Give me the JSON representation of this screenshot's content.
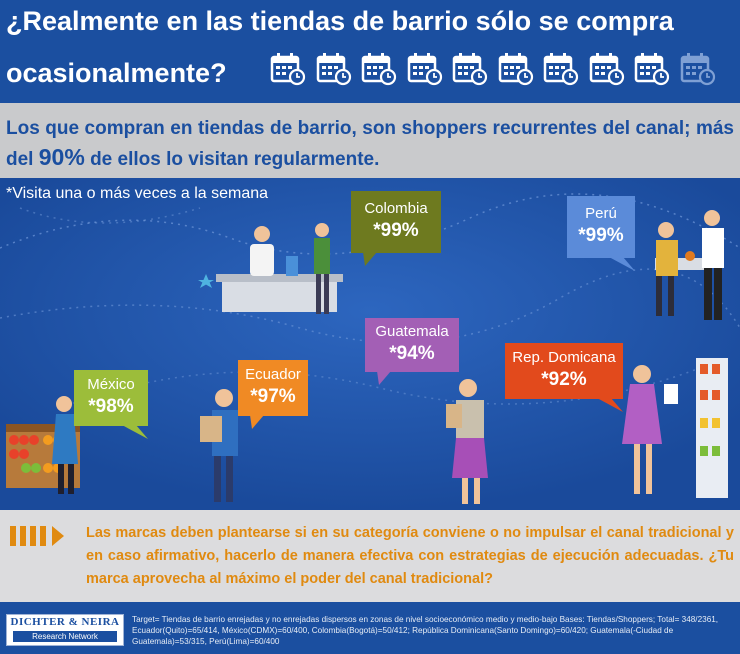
{
  "header": {
    "title_line1": "¿Realmente en las tiendas de barrio sólo se compra",
    "title_line2": "ocasionalmente?",
    "calendar_icon_count": 10
  },
  "subtitle": {
    "text_before": "Los que compran en tiendas de barrio, son shoppers recurrentes del canal; más del",
    "highlight": "90%",
    "text_after": "de ellos lo visitan regularmente."
  },
  "scene": {
    "footnote": "*Visita una o más veces a la semana",
    "countries": [
      {
        "name": "Colombia",
        "value": "*99%",
        "color": "#6e7a1f"
      },
      {
        "name": "Perú",
        "value": "*99%",
        "color": "#5b8bd9"
      },
      {
        "name": "Guatemala",
        "value": "*94%",
        "color": "#a35fb5"
      },
      {
        "name": "Rep. Domicana",
        "value": "*92%",
        "color": "#e24a1c"
      },
      {
        "name": "Ecuador",
        "value": "*97%",
        "color": "#f08a24"
      },
      {
        "name": "México",
        "value": "*98%",
        "color": "#9cbd3a"
      }
    ]
  },
  "message": {
    "text": "Las marcas deben plantearse si en su categoría conviene o no impulsar el canal tradicional y en caso afirmativo, hacerlo de manera efectiva con estrategias de ejecución adecuadas. ¿Tu marca aprovecha al máximo el poder del canal tradicional?"
  },
  "footer": {
    "logo_name": "DICHTER & NEIRA",
    "logo_sub": "Research Network",
    "target_text": "Target= Tiendas de barrio enrejadas y no enrejadas dispersos en zonas de nivel socioeconómico medio y medio-bajo Bases: Tiendas/Shoppers; Total= 348/2361, Ecuador(Quito)=65/414, México(CDMX)=60/400, Colombia(Bogotá)=50/412; República Dominicana(Santo Domingo)=60/420; Guatemala(-Ciudad de Guatemala)=53/315, Perú(Lima)=60/400"
  },
  "colors": {
    "brand_blue": "#1b4fa0",
    "subtitle_band": "#c9cacc",
    "accent_orange": "#e08a10"
  }
}
